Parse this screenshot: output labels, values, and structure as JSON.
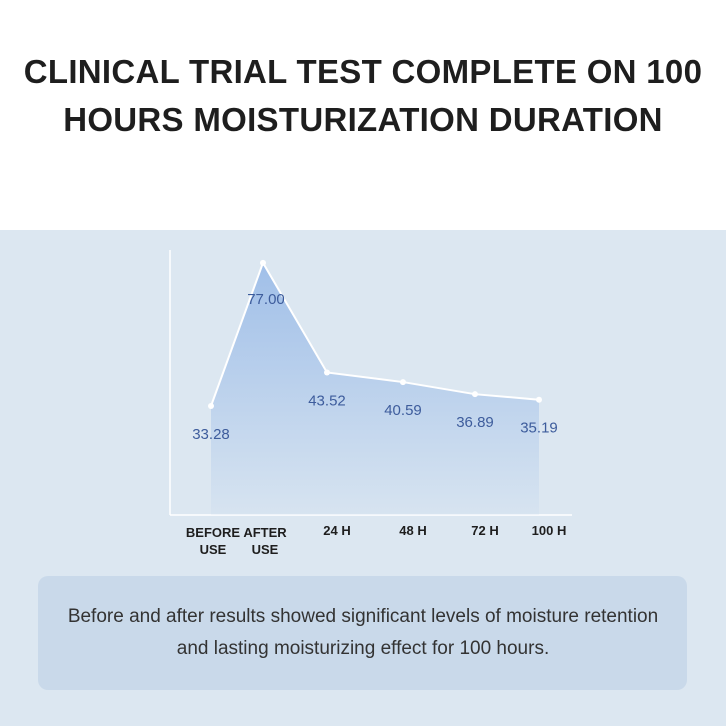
{
  "chart_data": {
    "type": "area",
    "title": "CLINICAL TRIAL TEST COMPLETE ON 100 HOURS MOISTURIZATION DURATION",
    "categories": [
      "BEFORE USE",
      "AFTER USE",
      "24 H",
      "48 H",
      "72 H",
      "100 H"
    ],
    "values": [
      33.28,
      77.0,
      43.52,
      40.59,
      36.89,
      35.19
    ],
    "value_labels": [
      "33.28",
      "77.00",
      "43.52",
      "40.59",
      "36.89",
      "35.19"
    ],
    "ylim": [
      0,
      80
    ],
    "color": "#9dbde8",
    "caption": "Before and after results showed significant levels of moisture retention and  lasting moisturizing effect for 100 hours."
  }
}
